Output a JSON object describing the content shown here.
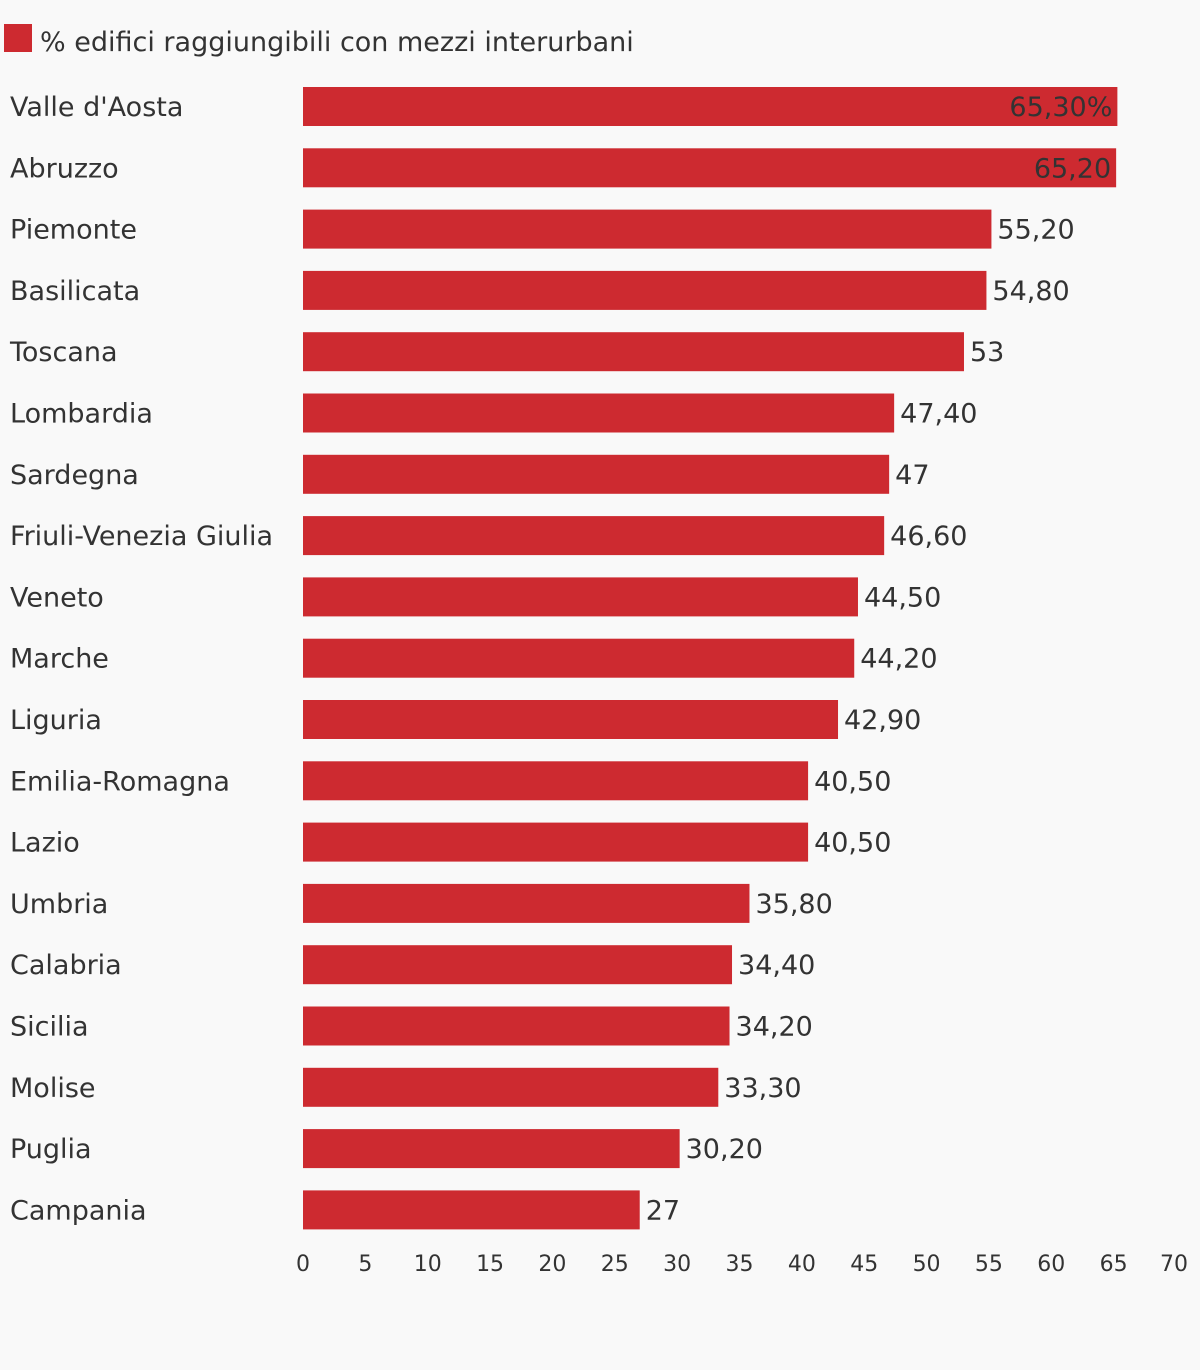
{
  "chart_data": {
    "type": "bar",
    "orientation": "horizontal",
    "legend": {
      "position": "top-left",
      "entries": [
        {
          "label": "% edifici raggiungibili con mezzi interurbani",
          "color": "#cd2a30"
        }
      ]
    },
    "series": [
      {
        "name": "% edifici raggiungibili con mezzi interurbani",
        "color": "#cd2a30"
      }
    ],
    "categories": [
      "Valle d'Aosta",
      "Abruzzo",
      "Piemonte",
      "Basilicata",
      "Toscana",
      "Lombardia",
      "Sardegna",
      "Friuli-Venezia Giulia",
      "Veneto",
      "Marche",
      "Liguria",
      "Emilia-Romagna",
      "Lazio",
      "Umbria",
      "Calabria",
      "Sicilia",
      "Molise",
      "Puglia",
      "Campania"
    ],
    "values": [
      65.3,
      65.2,
      55.2,
      54.8,
      53,
      47.4,
      47,
      46.6,
      44.5,
      44.2,
      42.9,
      40.5,
      40.5,
      35.8,
      34.4,
      34.2,
      33.3,
      30.2,
      27
    ],
    "value_labels": [
      "65,30%",
      "65,20",
      "55,20",
      "54,80",
      "53",
      "47,40",
      "47",
      "46,60",
      "44,50",
      "44,20",
      "42,90",
      "40,50",
      "40,50",
      "35,80",
      "34,40",
      "34,20",
      "33,30",
      "30,20",
      "27"
    ],
    "xlim": [
      0,
      70
    ],
    "x_ticks": [
      "0",
      "5",
      "10",
      "15",
      "20",
      "25",
      "30",
      "35",
      "40",
      "45",
      "50",
      "55",
      "60",
      "65",
      "70"
    ],
    "grid": false,
    "xlabel": "",
    "ylabel": "",
    "title": ""
  }
}
